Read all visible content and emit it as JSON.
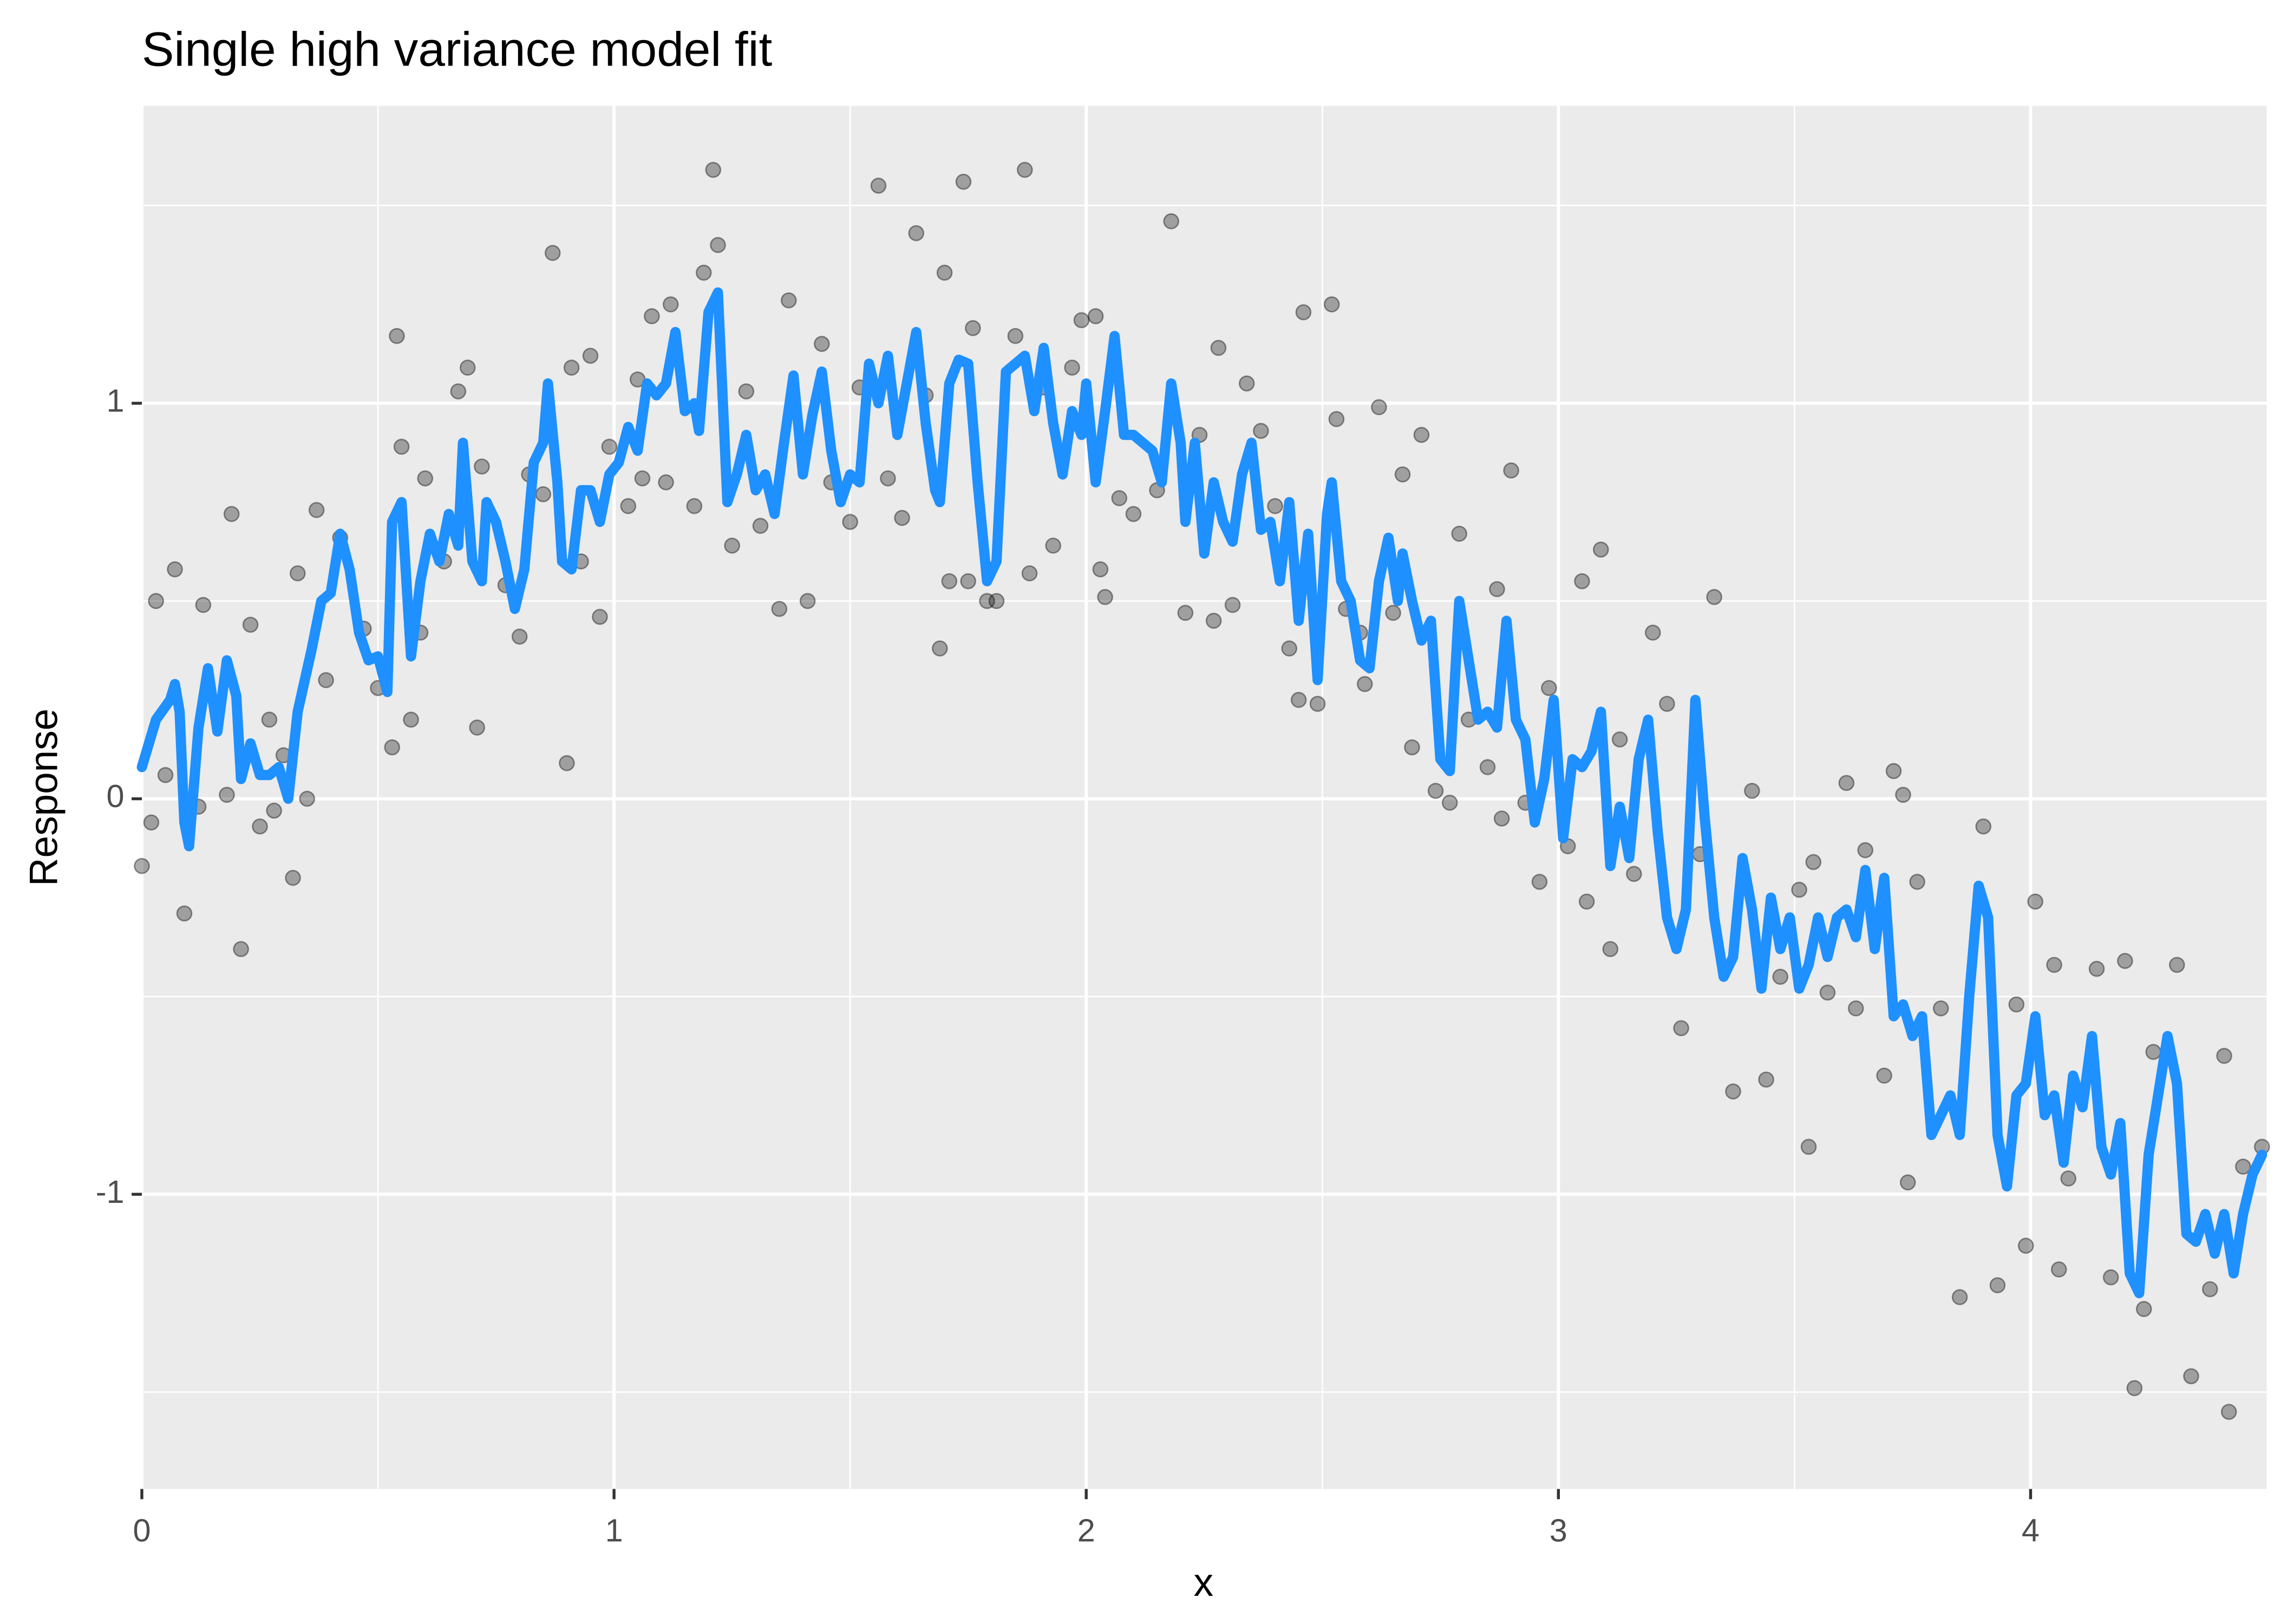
{
  "chart_data": {
    "type": "scatter",
    "title": "Single high variance model fit",
    "x_label": "x",
    "y_label": "Response",
    "xlim": [
      0,
      4.5
    ],
    "ylim": [
      -1.745,
      1.752
    ],
    "xticks": [
      0,
      1,
      2,
      3,
      4
    ],
    "yticks": [
      -1,
      0,
      1
    ],
    "x_minor_ticks": [
      0.5,
      1.5,
      2.5,
      3.5
    ],
    "y_minor_ticks": [
      -1.5,
      -0.5,
      0.5,
      1.5
    ],
    "grid": true,
    "series": [
      {
        "type": "scatter",
        "color": "#000000",
        "x": [
          0,
          0.02,
          0.03,
          0.05,
          0.07,
          0.09,
          0.12,
          0.13,
          0.18,
          0.19,
          0.21,
          0.23,
          0.25,
          0.27,
          0.28,
          0.3,
          0.32,
          0.33,
          0.35,
          0.37,
          0.39,
          0.42,
          0.47,
          0.5,
          0.53,
          0.54,
          0.55,
          0.57,
          0.59,
          0.6,
          0.64,
          0.67,
          0.69,
          0.71,
          0.72,
          0.77,
          0.8,
          0.82,
          0.85,
          0.87,
          0.9,
          0.91,
          0.93,
          0.95,
          0.97,
          0.99,
          1.03,
          1.05,
          1.06,
          1.08,
          1.11,
          1.12,
          1.17,
          1.19,
          1.21,
          1.22,
          1.25,
          1.28,
          1.31,
          1.35,
          1.37,
          1.41,
          1.44,
          1.46,
          1.5,
          1.52,
          1.56,
          1.58,
          1.61,
          1.64,
          1.66,
          1.69,
          1.7,
          1.71,
          1.74,
          1.75,
          1.76,
          1.79,
          1.81,
          1.85,
          1.87,
          1.88,
          1.91,
          1.93,
          1.97,
          1.99,
          2.02,
          2.03,
          2.04,
          2.07,
          2.1,
          2.15,
          2.18,
          2.21,
          2.24,
          2.27,
          2.28,
          2.31,
          2.34,
          2.37,
          2.4,
          2.43,
          2.45,
          2.46,
          2.49,
          2.52,
          2.53,
          2.55,
          2.58,
          2.59,
          2.62,
          2.65,
          2.67,
          2.69,
          2.71,
          2.74,
          2.77,
          2.79,
          2.81,
          2.85,
          2.87,
          2.88,
          2.9,
          2.93,
          2.96,
          2.98,
          3.02,
          3.05,
          3.06,
          3.09,
          3.11,
          3.13,
          3.16,
          3.2,
          3.23,
          3.26,
          3.3,
          3.33,
          3.37,
          3.41,
          3.44,
          3.47,
          3.51,
          3.53,
          3.54,
          3.57,
          3.61,
          3.63,
          3.65,
          3.69,
          3.71,
          3.73,
          3.74,
          3.76,
          3.81,
          3.85,
          3.9,
          3.93,
          3.97,
          3.99,
          4.01,
          4.05,
          4.06,
          4.08,
          4.14,
          4.17,
          4.2,
          4.22,
          4.24,
          4.26,
          4.31,
          4.34,
          4.38,
          4.41,
          4.42,
          4.45,
          4.49
        ],
        "values": [
          -0.17,
          -0.06,
          0.5,
          0.06,
          0.58,
          -0.29,
          -0.02,
          0.49,
          0.01,
          0.72,
          -0.38,
          0.44,
          -0.07,
          0.2,
          -0.03,
          0.11,
          -0.2,
          0.57,
          0,
          0.73,
          0.3,
          0.66,
          0.43,
          0.28,
          0.13,
          1.17,
          0.89,
          0.2,
          0.42,
          0.81,
          0.6,
          1.03,
          1.09,
          0.18,
          0.84,
          0.54,
          0.41,
          0.82,
          0.77,
          1.38,
          0.09,
          1.09,
          0.6,
          1.12,
          0.46,
          0.89,
          0.74,
          1.06,
          0.81,
          1.22,
          0.8,
          1.25,
          0.74,
          1.33,
          1.59,
          1.4,
          0.64,
          1.03,
          0.69,
          0.48,
          1.26,
          0.5,
          1.15,
          0.8,
          0.7,
          1.04,
          1.55,
          0.81,
          0.71,
          1.43,
          1.02,
          0.38,
          1.33,
          0.55,
          1.56,
          0.55,
          1.19,
          0.5,
          0.5,
          1.17,
          1.59,
          0.57,
          1.04,
          0.64,
          1.09,
          1.21,
          1.22,
          0.58,
          0.51,
          0.76,
          0.72,
          0.78,
          1.46,
          0.47,
          0.92,
          0.45,
          1.14,
          0.49,
          1.05,
          0.93,
          0.74,
          0.38,
          0.25,
          1.23,
          0.24,
          1.25,
          0.96,
          0.48,
          0.42,
          0.29,
          0.99,
          0.47,
          0.82,
          0.13,
          0.92,
          0.02,
          -0.01,
          0.67,
          0.2,
          0.08,
          0.53,
          -0.05,
          0.83,
          -0.01,
          -0.21,
          0.28,
          -0.12,
          0.55,
          -0.26,
          0.63,
          -0.38,
          0.15,
          -0.19,
          0.42,
          0.24,
          -0.58,
          -0.14,
          0.51,
          -0.74,
          0.02,
          -0.71,
          -0.45,
          -0.23,
          -0.88,
          -0.16,
          -0.49,
          0.04,
          -0.53,
          -0.13,
          -0.7,
          0.07,
          0.01,
          -0.97,
          -0.21,
          -0.53,
          -1.26,
          -0.07,
          -1.23,
          -0.52,
          -1.13,
          -0.26,
          -0.42,
          -1.19,
          -0.96,
          -0.43,
          -1.21,
          -0.41,
          -1.49,
          -1.29,
          -0.64,
          -0.42,
          -1.46,
          -1.24,
          -0.65,
          -1.55,
          -0.93,
          -0.88
        ]
      },
      {
        "type": "line",
        "color": "#1e90ff",
        "x": [
          0,
          0.03,
          0.06,
          0.07,
          0.08,
          0.09,
          0.1,
          0.12,
          0.14,
          0.16,
          0.18,
          0.2,
          0.21,
          0.23,
          0.25,
          0.27,
          0.29,
          0.31,
          0.33,
          0.36,
          0.38,
          0.4,
          0.42,
          0.44,
          0.46,
          0.48,
          0.5,
          0.52,
          0.53,
          0.55,
          0.57,
          0.59,
          0.61,
          0.63,
          0.65,
          0.67,
          0.68,
          0.7,
          0.72,
          0.73,
          0.75,
          0.77,
          0.79,
          0.81,
          0.83,
          0.85,
          0.86,
          0.88,
          0.89,
          0.91,
          0.93,
          0.95,
          0.97,
          0.99,
          1.01,
          1.03,
          1.05,
          1.07,
          1.09,
          1.11,
          1.13,
          1.15,
          1.17,
          1.18,
          1.2,
          1.22,
          1.24,
          1.26,
          1.28,
          1.3,
          1.32,
          1.34,
          1.36,
          1.38,
          1.4,
          1.42,
          1.44,
          1.46,
          1.48,
          1.5,
          1.52,
          1.54,
          1.56,
          1.58,
          1.6,
          1.62,
          1.64,
          1.66,
          1.68,
          1.69,
          1.71,
          1.73,
          1.75,
          1.77,
          1.79,
          1.81,
          1.83,
          1.85,
          1.87,
          1.89,
          1.91,
          1.93,
          1.95,
          1.97,
          1.99,
          2,
          2.02,
          2.04,
          2.06,
          2.08,
          2.1,
          2.12,
          2.14,
          2.16,
          2.18,
          2.2,
          2.21,
          2.23,
          2.25,
          2.27,
          2.29,
          2.31,
          2.33,
          2.35,
          2.37,
          2.39,
          2.41,
          2.43,
          2.45,
          2.47,
          2.49,
          2.51,
          2.52,
          2.54,
          2.56,
          2.58,
          2.6,
          2.62,
          2.64,
          2.66,
          2.67,
          2.69,
          2.71,
          2.73,
          2.75,
          2.77,
          2.79,
          2.81,
          2.83,
          2.85,
          2.87,
          2.89,
          2.91,
          2.93,
          2.95,
          2.97,
          2.99,
          3.01,
          3.03,
          3.05,
          3.07,
          3.09,
          3.11,
          3.13,
          3.15,
          3.17,
          3.19,
          3.21,
          3.23,
          3.25,
          3.27,
          3.29,
          3.31,
          3.33,
          3.35,
          3.37,
          3.39,
          3.41,
          3.43,
          3.45,
          3.47,
          3.49,
          3.51,
          3.53,
          3.55,
          3.57,
          3.59,
          3.61,
          3.63,
          3.65,
          3.67,
          3.69,
          3.71,
          3.73,
          3.75,
          3.77,
          3.79,
          3.81,
          3.83,
          3.85,
          3.87,
          3.89,
          3.91,
          3.93,
          3.95,
          3.97,
          3.99,
          4.01,
          4.03,
          4.05,
          4.07,
          4.09,
          4.11,
          4.13,
          4.15,
          4.17,
          4.19,
          4.21,
          4.23,
          4.25,
          4.27,
          4.29,
          4.31,
          4.33,
          4.35,
          4.37,
          4.39,
          4.41,
          4.43,
          4.45,
          4.47,
          4.49
        ],
        "values": [
          0.08,
          0.2,
          0.25,
          0.29,
          0.22,
          -0.06,
          -0.12,
          0.18,
          0.33,
          0.17,
          0.35,
          0.26,
          0.05,
          0.14,
          0.06,
          0.06,
          0.08,
          0,
          0.22,
          0.38,
          0.5,
          0.52,
          0.67,
          0.58,
          0.42,
          0.35,
          0.36,
          0.27,
          0.7,
          0.75,
          0.36,
          0.55,
          0.67,
          0.6,
          0.72,
          0.64,
          0.9,
          0.6,
          0.55,
          0.75,
          0.7,
          0.6,
          0.48,
          0.58,
          0.85,
          0.9,
          1.05,
          0.8,
          0.6,
          0.58,
          0.78,
          0.78,
          0.7,
          0.82,
          0.85,
          0.94,
          0.88,
          1.05,
          1.02,
          1.05,
          1.18,
          0.98,
          1,
          0.93,
          1.23,
          1.28,
          0.75,
          0.82,
          0.92,
          0.78,
          0.82,
          0.72,
          0.9,
          1.07,
          0.82,
          0.97,
          1.08,
          0.88,
          0.75,
          0.82,
          0.8,
          1.1,
          1,
          1.12,
          0.92,
          1.05,
          1.18,
          0.95,
          0.78,
          0.75,
          1.05,
          1.11,
          1.1,
          0.8,
          0.55,
          0.6,
          1.08,
          1.1,
          1.12,
          0.98,
          1.14,
          0.95,
          0.82,
          0.98,
          0.92,
          1.05,
          0.8,
          0.98,
          1.17,
          0.92,
          0.92,
          0.9,
          0.88,
          0.8,
          1.05,
          0.9,
          0.7,
          0.9,
          0.62,
          0.8,
          0.7,
          0.65,
          0.82,
          0.9,
          0.68,
          0.7,
          0.55,
          0.75,
          0.45,
          0.67,
          0.3,
          0.72,
          0.8,
          0.55,
          0.5,
          0.35,
          0.33,
          0.55,
          0.66,
          0.5,
          0.62,
          0.5,
          0.4,
          0.45,
          0.1,
          0.07,
          0.5,
          0.35,
          0.2,
          0.22,
          0.18,
          0.45,
          0.2,
          0.15,
          -0.06,
          0.05,
          0.25,
          -0.1,
          0.1,
          0.08,
          0.12,
          0.22,
          -0.17,
          -0.02,
          -0.15,
          0.1,
          0.2,
          -0.08,
          -0.3,
          -0.38,
          -0.28,
          0.25,
          -0.05,
          -0.3,
          -0.45,
          -0.4,
          -0.15,
          -0.28,
          -0.48,
          -0.25,
          -0.38,
          -0.3,
          -0.48,
          -0.42,
          -0.3,
          -0.4,
          -0.3,
          -0.28,
          -0.35,
          -0.18,
          -0.38,
          -0.2,
          -0.55,
          -0.52,
          -0.6,
          -0.55,
          -0.85,
          -0.8,
          -0.75,
          -0.85,
          -0.5,
          -0.22,
          -0.3,
          -0.85,
          -0.98,
          -0.75,
          -0.72,
          -0.55,
          -0.8,
          -0.75,
          -0.92,
          -0.7,
          -0.78,
          -0.6,
          -0.88,
          -0.95,
          -0.82,
          -1.2,
          -1.25,
          -0.9,
          -0.75,
          -0.6,
          -0.72,
          -1.1,
          -1.12,
          -1.05,
          -1.15,
          -1.05,
          -1.2,
          -1.05,
          -0.95,
          -0.9
        ]
      }
    ]
  }
}
